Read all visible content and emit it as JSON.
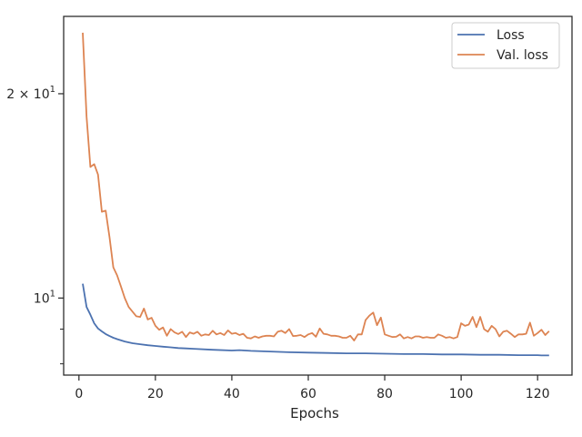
{
  "chart_data": {
    "type": "line",
    "title": "",
    "xlabel": "Epochs",
    "ylabel": "",
    "yscale": "log",
    "xlim": [
      -4,
      129
    ],
    "ylim": [
      7.7,
      26.0
    ],
    "grid": false,
    "legend_position": "top-right",
    "x_ticks": [
      0,
      20,
      40,
      60,
      80,
      100,
      120
    ],
    "x_tick_labels": [
      "0",
      "20",
      "40",
      "60",
      "80",
      "100",
      "120"
    ],
    "y_ticks": [
      10,
      20
    ],
    "y_tick_labels": [
      "10^1",
      "2 × 10^1"
    ],
    "y_minor_ticks": [
      8,
      9
    ],
    "series": [
      {
        "name": "Loss",
        "color": "#4c72b0",
        "x": [
          1,
          2,
          3,
          4,
          5,
          6,
          7,
          8,
          9,
          10,
          12,
          14,
          16,
          18,
          20,
          22,
          24,
          26,
          28,
          30,
          35,
          40,
          42,
          45,
          50,
          55,
          60,
          65,
          70,
          75,
          80,
          85,
          90,
          95,
          100,
          105,
          110,
          115,
          120,
          121,
          122,
          123
        ],
        "y": [
          10.5,
          9.7,
          9.45,
          9.18,
          9.02,
          8.93,
          8.85,
          8.79,
          8.74,
          8.7,
          8.63,
          8.58,
          8.55,
          8.52,
          8.5,
          8.48,
          8.46,
          8.44,
          8.43,
          8.42,
          8.39,
          8.37,
          8.38,
          8.36,
          8.34,
          8.32,
          8.31,
          8.3,
          8.29,
          8.29,
          8.28,
          8.27,
          8.27,
          8.26,
          8.26,
          8.25,
          8.25,
          8.24,
          8.24,
          8.23,
          8.23,
          8.23
        ]
      },
      {
        "name": "Val. loss",
        "color": "#dd8452",
        "x": [
          1,
          2,
          3,
          4,
          5,
          6,
          7,
          8,
          9,
          10,
          11,
          12,
          13,
          14,
          15,
          16,
          17,
          18,
          19,
          20,
          21,
          22,
          23,
          24,
          25,
          26,
          27,
          28,
          29,
          30,
          31,
          32,
          33,
          34,
          35,
          36,
          37,
          38,
          39,
          40,
          41,
          42,
          43,
          44,
          45,
          46,
          47,
          48,
          49,
          50,
          51,
          52,
          53,
          54,
          55,
          56,
          57,
          58,
          59,
          60,
          61,
          62,
          63,
          64,
          65,
          66,
          67,
          68,
          69,
          70,
          71,
          72,
          73,
          74,
          75,
          76,
          77,
          78,
          79,
          80,
          81,
          82,
          83,
          84,
          85,
          86,
          87,
          88,
          89,
          90,
          91,
          92,
          93,
          94,
          95,
          96,
          97,
          98,
          99,
          100,
          101,
          102,
          103,
          104,
          105,
          106,
          107,
          108,
          109,
          110,
          111,
          112,
          113,
          114,
          115,
          116,
          117,
          118,
          119,
          120,
          121,
          122,
          123
        ],
        "y": [
          24.6,
          18.5,
          15.6,
          15.75,
          15.2,
          13.4,
          13.45,
          12.3,
          11.1,
          10.8,
          10.4,
          10.0,
          9.7,
          9.55,
          9.4,
          9.38,
          9.65,
          9.3,
          9.35,
          9.1,
          8.98,
          9.05,
          8.8,
          9.0,
          8.9,
          8.85,
          8.92,
          8.76,
          8.9,
          8.86,
          8.92,
          8.8,
          8.84,
          8.82,
          8.95,
          8.84,
          8.88,
          8.82,
          8.96,
          8.86,
          8.88,
          8.82,
          8.86,
          8.74,
          8.72,
          8.78,
          8.74,
          8.78,
          8.8,
          8.8,
          8.78,
          8.92,
          8.95,
          8.88,
          9.0,
          8.79,
          8.8,
          8.82,
          8.76,
          8.84,
          8.88,
          8.77,
          9.02,
          8.86,
          8.84,
          8.8,
          8.8,
          8.78,
          8.74,
          8.74,
          8.8,
          8.66,
          8.84,
          8.84,
          9.28,
          9.42,
          9.52,
          9.12,
          9.36,
          8.84,
          8.8,
          8.76,
          8.77,
          8.84,
          8.72,
          8.76,
          8.72,
          8.78,
          8.78,
          8.74,
          8.76,
          8.74,
          8.74,
          8.84,
          8.8,
          8.74,
          8.76,
          8.72,
          8.76,
          9.18,
          9.1,
          9.14,
          9.38,
          9.06,
          9.38,
          9.0,
          8.92,
          9.1,
          9.0,
          8.78,
          8.92,
          8.95,
          8.86,
          8.76,
          8.84,
          8.84,
          8.86,
          9.2,
          8.8,
          8.88,
          8.98,
          8.82,
          8.94
        ]
      }
    ]
  }
}
